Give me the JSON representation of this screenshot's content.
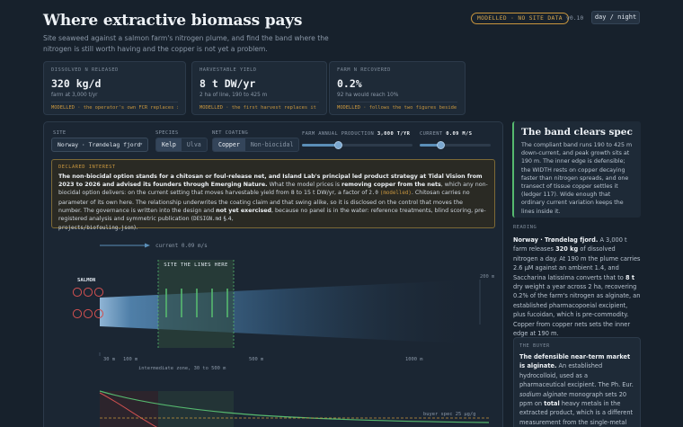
{
  "header": {
    "title": "Where extractive biomass pays",
    "subtitle": "Site seaweed against a salmon farm's nitrogen plume, and find the band where the nitrogen is still worth having and the copper is not yet a problem.",
    "badge": "MODELLED · NO SITE DATA",
    "version": "v0.10",
    "theme_toggle": "day / night"
  },
  "stats": [
    {
      "label": "DISSOLVED N RELEASED",
      "value": "320 kg/d",
      "sub": "farm at 3,000 t/yr",
      "note": "MODELLED · the operator's own FCR replaces it"
    },
    {
      "label": "HARVESTABLE YIELD",
      "value": "8 t DW/yr",
      "sub": "2 ha of line, 190 to 425 m",
      "note": "MODELLED · the first harvest replaces it"
    },
    {
      "label": "FARM N RECOVERED",
      "value": "0.2%",
      "sub": "92 ha would reach 10%",
      "note": "MODELLED · follows the two figures beside it"
    }
  ],
  "controls": {
    "site_label": "SITE",
    "site_value": "Norway · Trøndelag fjord",
    "species_label": "SPECIES",
    "species_options": [
      "Kelp",
      "Ulva"
    ],
    "species_selected": "Kelp",
    "coating_label": "NET COATING",
    "coating_options": [
      "Copper",
      "Non-biocidal"
    ],
    "coating_selected": "Copper",
    "production_label": "FARM ANNUAL PRODUCTION",
    "production_value": "3,000 t/yr",
    "production_fraction": 0.33,
    "current_label": "CURRENT",
    "current_value": "0.09 m/s",
    "current_fraction": 0.3
  },
  "interest": {
    "label": "DECLARED INTEREST",
    "p1": "The non-biocidal option stands for a chitosan or foul-release net, and Island Lab's principal led product strategy at Tidal Vision from 2023 to 2026 and advised its founders through Emerging Nature.",
    "p2": " What the model prices is ",
    "p3": "removing copper from the nets",
    "p4": ", which any non-biocidal option delivers: on the current setting that moves harvestable yield from 8 to 15 t DW/yr, a factor of ",
    "p5": "2.0",
    "p6": "(modelled)",
    "p7": ". Chitosan carries no parameter of its own here. The relationship underwrites the coating claim and that swing alike, so it is disclosed on the control that moves the number. The governance is written into the design and ",
    "p8": "not yet exercised",
    "p9": ", because no panel is in the water: reference treatments, blind scoring, pre-registered analysis and symmetric publication (",
    "p10": "DESIGN.md",
    "p11": " §.4,",
    "p12": "projects/biofouling.json",
    "p13": ")."
  },
  "plume": {
    "current_label": "current 0.09 m/s",
    "site_label": "SITE THE LINES HERE",
    "salmon_label": "SALMON",
    "depth_label": "200 m",
    "ticks": [
      "30 m",
      "100 m",
      "500 m",
      "1000 m"
    ],
    "zone_label": "intermediate zone, 30 to 500 m",
    "band_start_m": 190,
    "band_end_m": 425,
    "inner_edge_m": 190
  },
  "bottom": {
    "spec_label": "buyer spec 25 µg/g"
  },
  "colors": {
    "accent_gold": "#c8963e",
    "accent_green": "#56b96f",
    "accent_red": "#d05050",
    "plume_blue": "#5b8fb8"
  },
  "sidebar": {
    "spec_title": "The band clears spec",
    "spec_body": "The compliant band runs 190 to 425 m down-current, and peak growth sits at 190 m. The inner edge is defensible; the WIDTH rests on copper decaying faster than nitrogen spreads, and one transect of tissue copper settles it (ledger 117). Wide enough that ordinary current variation keeps the lines inside it.",
    "reading_label": "READING",
    "r_site": "Norway · Trøndelag fjord.",
    "r1": " A 3,000 t farm releases ",
    "r_n": "320 kg",
    "r2": " of dissolved nitrogen a day. At 190 m the plume carries 2.6 µM against an ambient 1.4, and Saccharina latissima converts that to ",
    "r_yield": "8 t",
    "r3": " dry weight a year across 2 ha, recovering 0.2% of the farm's nitrogen as alginate, an established pharmacopoeial excipient, plus fucoidan, which is pre-commodity. Copper from copper nets sets the inner edge at 190 m.",
    "buyer_label": "THE BUYER",
    "b_strong": "The defensible near-term market is alginate.",
    "b1": " An established hydrocolloid, used as a pharmaceutical excipient. The Ph. Eur. ",
    "b_em": "sodium alginate",
    "b2": " monograph sets 20 ppm on ",
    "b_total": "total",
    "b3": " heavy metals in the extracted product, which is a different measurement from the single-metal copper figure on this chart. Fucoidan is"
  }
}
